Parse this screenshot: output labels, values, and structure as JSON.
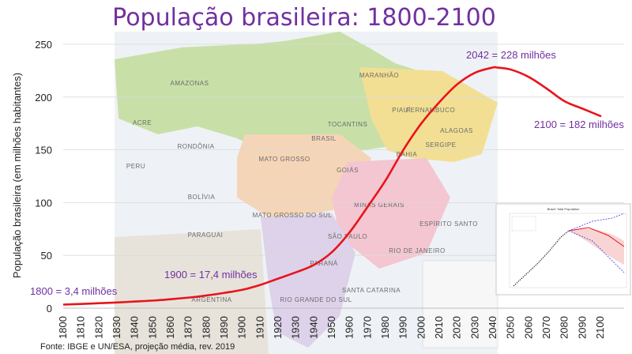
{
  "chart_data": {
    "type": "line",
    "title": "População brasileira: 1800-2100",
    "ylabel": "População brasileira (em milhões habitantes)",
    "xlabel": "",
    "xlim": [
      1800,
      2100
    ],
    "ylim": [
      0,
      250
    ],
    "x_ticks": [
      1800,
      1810,
      1820,
      1830,
      1840,
      1850,
      1860,
      1870,
      1880,
      1890,
      1900,
      1910,
      1920,
      1930,
      1940,
      1950,
      1960,
      1970,
      1980,
      1990,
      2000,
      2010,
      2020,
      2030,
      2040,
      2050,
      2060,
      2070,
      2080,
      2090,
      2100
    ],
    "y_ticks": [
      0,
      50,
      100,
      150,
      200,
      250
    ],
    "grid": "horizontal",
    "series": [
      {
        "color": "#e8141b",
        "x": [
          1800,
          1810,
          1820,
          1830,
          1840,
          1850,
          1860,
          1870,
          1880,
          1890,
          1900,
          1910,
          1920,
          1930,
          1940,
          1950,
          1960,
          1970,
          1980,
          1990,
          2000,
          2010,
          2020,
          2030,
          2040,
          2042,
          2050,
          2060,
          2070,
          2080,
          2090,
          2100
        ],
        "y": [
          3.4,
          4.0,
          4.7,
          5.4,
          6.3,
          7.2,
          8.5,
          10.0,
          12.0,
          14.5,
          17.4,
          22.0,
          28.0,
          34.0,
          41.0,
          53.0,
          72.0,
          96.0,
          121.0,
          150.0,
          175.0,
          195.0,
          212.0,
          223.0,
          228.0,
          228.0,
          226.0,
          219.0,
          208.0,
          196.0,
          189.0,
          182.0
        ]
      }
    ],
    "annotations": [
      {
        "text": "1800 = 3,4 milhões"
      },
      {
        "text": "1900 = 17,4 milhões"
      },
      {
        "text": "2042 = 228 milhões"
      },
      {
        "text": "2100 = 182 milhões"
      }
    ],
    "source": "Fonte: IBGE e UN/ESA, projeção média, rev. 2019"
  },
  "background_map": {
    "labels": [
      "AMAZONAS",
      "ACRE",
      "RONDÔNIA",
      "MATO GROSSO",
      "GOIÁS",
      "MATO GROSSO DO SUL",
      "MINAS GERAIS",
      "SÃO PAULO",
      "PARANÁ",
      "RIO GRANDE DO SUL",
      "MARANHÃO",
      "PIAUÍ",
      "PERNAMBUCO",
      "ALAGOAS",
      "SERGIPE",
      "BAHIA",
      "TOCANTINS",
      "ESPÍRITO SANTO",
      "RIO DE JANEIRO",
      "SANTA CATARINA",
      "BOLÍVIA",
      "PERU",
      "ARGENTINA",
      "PARAGUAI",
      "BRASIL"
    ]
  },
  "inset": {
    "title": "Brazil: Total Population"
  },
  "colors": {
    "title": "#7030a0",
    "annotation": "#7030a0",
    "line": "#e8141b"
  }
}
